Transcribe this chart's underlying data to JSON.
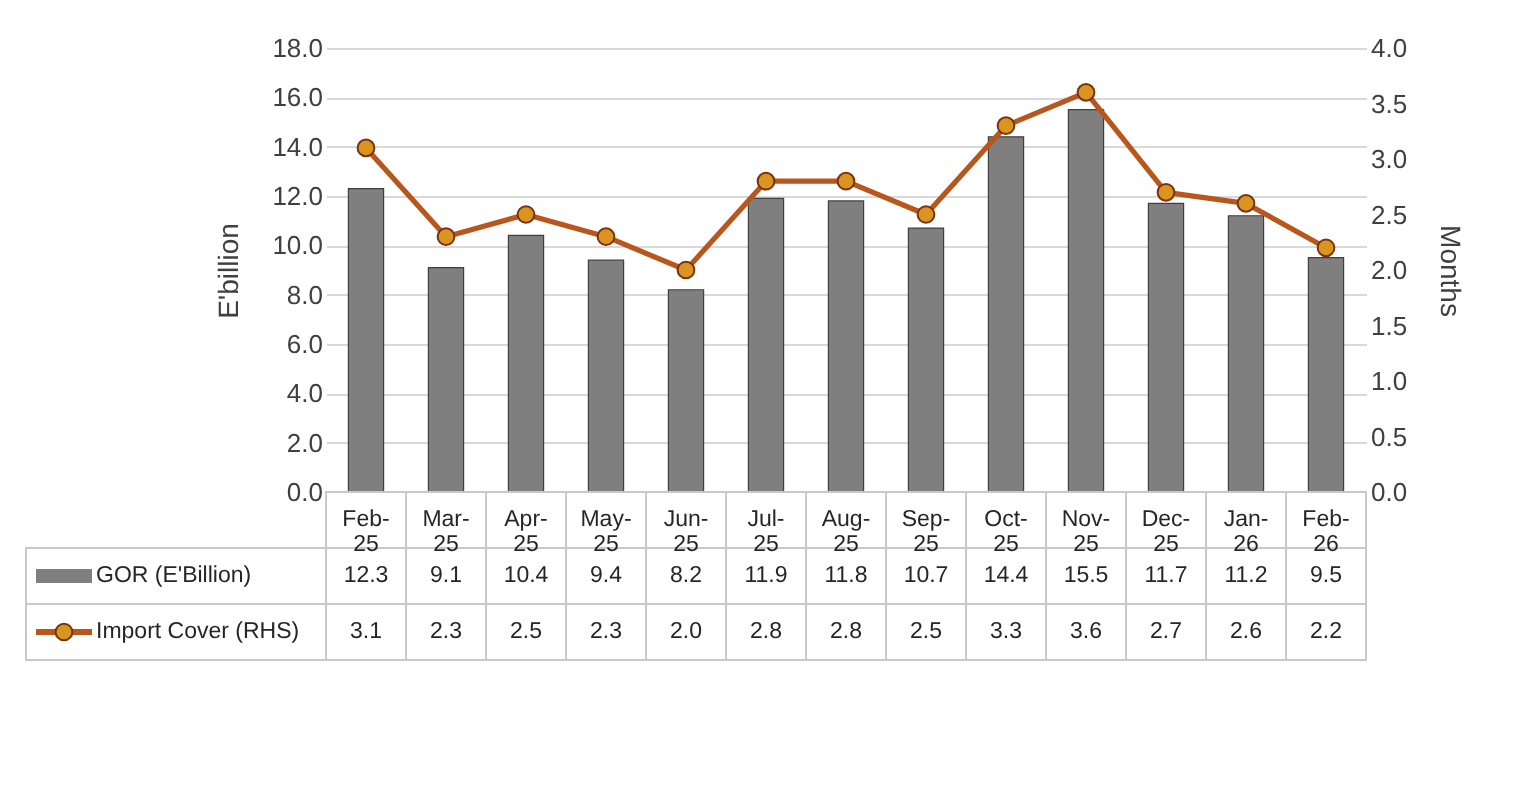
{
  "chart_data": {
    "type": "bar",
    "categories": [
      "Feb-25",
      "Mar-25",
      "Apr-25",
      "May-25",
      "Jun-25",
      "Jul-25",
      "Aug-25",
      "Sep-25",
      "Oct-25",
      "Nov-25",
      "Dec-25",
      "Jan-26",
      "Feb-26"
    ],
    "series": [
      {
        "name": "GOR (E'Billion)",
        "color": "#7f7f7f",
        "values": [
          12.3,
          9.1,
          10.4,
          9.4,
          8.2,
          11.9,
          11.8,
          10.7,
          14.4,
          15.5,
          11.7,
          11.2,
          9.5
        ],
        "value_labels": [
          "12.3",
          "9.1",
          "10.4",
          "9.4",
          "8.2",
          "11.9",
          "11.8",
          "10.7",
          "14.4",
          "15.5",
          "11.7",
          "11.2",
          "9.5"
        ]
      },
      {
        "name": "Import Cover (RHS)",
        "type": "line",
        "axis": "y2",
        "color": "#b8561c",
        "values": [
          3.1,
          2.3,
          2.5,
          2.3,
          2.0,
          2.8,
          2.8,
          2.5,
          3.3,
          3.6,
          2.7,
          2.6,
          2.2
        ],
        "value_labels": [
          "3.1",
          "2.3",
          "2.5",
          "2.3",
          "2.0",
          "2.8",
          "2.8",
          "2.5",
          "3.3",
          "3.6",
          "2.7",
          "2.6",
          "2.2"
        ]
      }
    ],
    "ylabel": "E'billion",
    "y2label": "Months",
    "ylim": [
      0,
      18
    ],
    "yticks": [
      {
        "value": 0,
        "label": "0.0"
      },
      {
        "value": 2,
        "label": "2.0"
      },
      {
        "value": 4,
        "label": "4.0"
      },
      {
        "value": 6,
        "label": "6.0"
      },
      {
        "value": 8,
        "label": "8.0"
      },
      {
        "value": 10,
        "label": "10.0"
      },
      {
        "value": 12,
        "label": "12.0"
      },
      {
        "value": 14,
        "label": "14.0"
      },
      {
        "value": 16,
        "label": "16.0"
      },
      {
        "value": 18,
        "label": "18.0"
      }
    ],
    "y2lim": [
      0,
      4
    ],
    "y2ticks": [
      {
        "value": 0,
        "label": "0.0"
      },
      {
        "value": 0.5,
        "label": "0.5"
      },
      {
        "value": 1,
        "label": "1.0"
      },
      {
        "value": 1.5,
        "label": "1.5"
      },
      {
        "value": 2,
        "label": "2.0"
      },
      {
        "value": 2.5,
        "label": "2.5"
      },
      {
        "value": 3,
        "label": "3.0"
      },
      {
        "value": 3.5,
        "label": "3.5"
      },
      {
        "value": 4,
        "label": "4.0"
      }
    ],
    "grid": "y",
    "legend": "bottom",
    "marker": "circle",
    "line_style": "solid"
  }
}
